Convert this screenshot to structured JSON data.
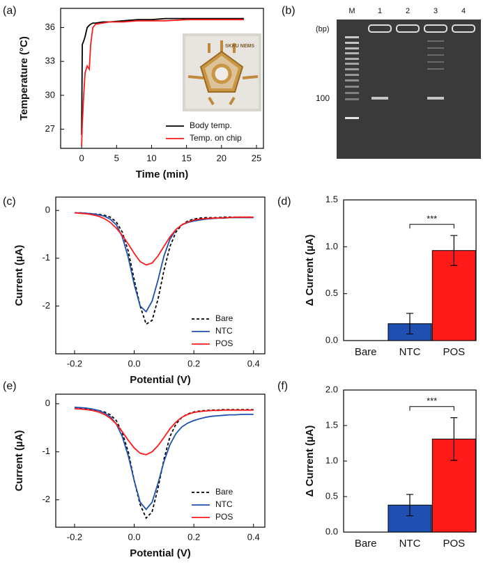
{
  "chart_data": [
    {
      "type": "line",
      "panel_label": "(a)",
      "x_label": "Time (min)",
      "y_label": "Temperature (°C)",
      "x": [
        0,
        0.1,
        0.3,
        0.5,
        0.8,
        1.1,
        1.3,
        1.6,
        2,
        3,
        4,
        6,
        8,
        10,
        12,
        15,
        18,
        21,
        23.2
      ],
      "series": [
        {
          "name": "Body temp.",
          "color": "#000000",
          "values": [
            26.5,
            34.5,
            34.8,
            35.2,
            36.0,
            36.2,
            36.3,
            36.4,
            36.4,
            36.5,
            36.5,
            36.6,
            36.7,
            36.7,
            36.8,
            36.8,
            36.8,
            36.8,
            36.8
          ]
        },
        {
          "name": "Temp. on chip",
          "color": "#ff1a1a",
          "values": [
            25.5,
            27.5,
            30,
            32,
            32.6,
            32.3,
            34.5,
            36,
            36.3,
            36.4,
            36.5,
            36.5,
            36.6,
            36.6,
            36.6,
            36.7,
            36.7,
            36.7,
            36.7
          ]
        }
      ],
      "xlim": [
        -3,
        26
      ],
      "ylim": [
        25.3,
        37.7
      ],
      "xticks": [
        0,
        5,
        10,
        15,
        20,
        25
      ],
      "yticks": [
        27,
        30,
        33,
        36
      ],
      "legend": "lower right",
      "inset_text": "SKKU NEMS"
    },
    {
      "type": "gel",
      "panel_label": "(b)",
      "lanes": [
        "M",
        "1",
        "2",
        "3",
        "4"
      ],
      "unit_label": "(bp)",
      "marker_label": "100"
    },
    {
      "type": "line",
      "panel_label": "(c)",
      "x_label": "Potential (V)",
      "y_label": "Current (µA)",
      "x": [
        -0.2,
        -0.18,
        -0.16,
        -0.14,
        -0.12,
        -0.1,
        -0.08,
        -0.06,
        -0.04,
        -0.02,
        0,
        0.02,
        0.04,
        0.06,
        0.08,
        0.1,
        0.12,
        0.14,
        0.16,
        0.18,
        0.2,
        0.22,
        0.24,
        0.26,
        0.28,
        0.3,
        0.32,
        0.34,
        0.36,
        0.38,
        0.4
      ],
      "series": [
        {
          "name": "Bare",
          "color": "#000000",
          "style": "dashed",
          "values": [
            -0.05,
            -0.05,
            -0.06,
            -0.07,
            -0.08,
            -0.1,
            -0.14,
            -0.24,
            -0.45,
            -0.85,
            -1.45,
            -2.0,
            -2.38,
            -2.3,
            -1.85,
            -1.25,
            -0.75,
            -0.45,
            -0.3,
            -0.22,
            -0.18,
            -0.16,
            -0.15,
            -0.15,
            -0.15,
            -0.14,
            -0.14,
            -0.14,
            -0.14,
            -0.14,
            -0.14
          ]
        },
        {
          "name": "NTC",
          "color": "#1f4fb0",
          "values": [
            -0.05,
            -0.05,
            -0.06,
            -0.07,
            -0.09,
            -0.12,
            -0.18,
            -0.3,
            -0.55,
            -0.98,
            -1.55,
            -2.0,
            -2.12,
            -1.9,
            -1.45,
            -0.95,
            -0.6,
            -0.4,
            -0.3,
            -0.25,
            -0.22,
            -0.2,
            -0.18,
            -0.17,
            -0.16,
            -0.16,
            -0.15,
            -0.15,
            -0.15,
            -0.15,
            -0.15
          ]
        },
        {
          "name": "POS",
          "color": "#ff1a1a",
          "values": [
            -0.05,
            -0.06,
            -0.07,
            -0.09,
            -0.12,
            -0.17,
            -0.25,
            -0.37,
            -0.52,
            -0.7,
            -0.9,
            -1.07,
            -1.14,
            -1.1,
            -0.95,
            -0.75,
            -0.55,
            -0.4,
            -0.3,
            -0.24,
            -0.2,
            -0.18,
            -0.17,
            -0.16,
            -0.16,
            -0.15,
            -0.15,
            -0.14,
            -0.14,
            -0.14,
            -0.14
          ]
        }
      ],
      "xlim": [
        -0.263,
        0.438
      ],
      "ylim": [
        -3.0,
        0.28
      ],
      "xticks": [
        -0.2,
        {
          "value": 0,
          "label": "0.0"
        },
        0.2,
        0.4
      ],
      "yticks": [
        0,
        -1,
        -2
      ],
      "legend": "lower right"
    },
    {
      "type": "bar",
      "panel_label": "(d)",
      "y_label": "Δ Current (µA)",
      "categories": [
        "Bare",
        "NTC",
        "POS"
      ],
      "values": [
        0,
        0.18,
        0.96
      ],
      "errors": [
        null,
        0.11,
        0.16
      ],
      "colors": [
        "#888888",
        "#1f4fb0",
        "#ff1a1a"
      ],
      "annotation": "***",
      "ylim": [
        0,
        1.5
      ],
      "yticks": [
        {
          "value": 0,
          "label": "0.0"
        },
        0.5,
        {
          "value": 1,
          "label": "1.0"
        },
        1.5
      ]
    },
    {
      "type": "line",
      "panel_label": "(e)",
      "x_label": "Potential (V)",
      "y_label": "Current (µA)",
      "x": [
        -0.2,
        -0.18,
        -0.16,
        -0.14,
        -0.12,
        -0.1,
        -0.08,
        -0.06,
        -0.04,
        -0.02,
        0,
        0.02,
        0.04,
        0.06,
        0.08,
        0.1,
        0.12,
        0.14,
        0.16,
        0.18,
        0.2,
        0.22,
        0.24,
        0.26,
        0.28,
        0.3,
        0.32,
        0.34,
        0.36,
        0.38,
        0.4
      ],
      "series": [
        {
          "name": "Bare",
          "color": "#000000",
          "style": "dashed",
          "values": [
            -0.1,
            -0.1,
            -0.11,
            -0.12,
            -0.14,
            -0.17,
            -0.23,
            -0.35,
            -0.6,
            -1.0,
            -1.6,
            -2.1,
            -2.38,
            -2.25,
            -1.75,
            -1.15,
            -0.68,
            -0.42,
            -0.28,
            -0.21,
            -0.17,
            -0.15,
            -0.14,
            -0.13,
            -0.13,
            -0.12,
            -0.12,
            -0.12,
            -0.12,
            -0.12,
            -0.12
          ]
        },
        {
          "name": "NTC",
          "color": "#1f4fb0",
          "values": [
            -0.07,
            -0.08,
            -0.09,
            -0.11,
            -0.14,
            -0.19,
            -0.27,
            -0.42,
            -0.68,
            -1.08,
            -1.6,
            -2.05,
            -2.2,
            -2.05,
            -1.65,
            -1.2,
            -0.85,
            -0.62,
            -0.48,
            -0.4,
            -0.35,
            -0.31,
            -0.28,
            -0.26,
            -0.25,
            -0.24,
            -0.23,
            -0.23,
            -0.22,
            -0.22,
            -0.22
          ]
        },
        {
          "name": "POS",
          "color": "#ff1a1a",
          "values": [
            -0.1,
            -0.11,
            -0.12,
            -0.14,
            -0.17,
            -0.22,
            -0.3,
            -0.42,
            -0.58,
            -0.76,
            -0.92,
            -1.03,
            -1.06,
            -1.0,
            -0.87,
            -0.7,
            -0.52,
            -0.38,
            -0.28,
            -0.22,
            -0.18,
            -0.16,
            -0.15,
            -0.14,
            -0.14,
            -0.13,
            -0.13,
            -0.13,
            -0.13,
            -0.13,
            -0.13
          ]
        }
      ],
      "xlim": [
        -0.263,
        0.438
      ],
      "ylim": [
        -2.57,
        0.2
      ],
      "xticks": [
        -0.2,
        {
          "value": 0,
          "label": "0.0"
        },
        0.2,
        0.4
      ],
      "yticks": [
        0,
        -1,
        -2
      ],
      "legend": "lower right"
    },
    {
      "type": "bar",
      "panel_label": "(f)",
      "y_label": "Δ Current (µA)",
      "categories": [
        "Bare",
        "NTC",
        "POS"
      ],
      "values": [
        0,
        0.38,
        1.31
      ],
      "errors": [
        null,
        0.15,
        0.3
      ],
      "colors": [
        "#888888",
        "#1f4fb0",
        "#ff1a1a"
      ],
      "annotation": "***",
      "ylim": [
        0,
        2.0
      ],
      "yticks": [
        {
          "value": 0,
          "label": "0.0"
        },
        0.5,
        {
          "value": 1,
          "label": "1.0"
        },
        1.5,
        {
          "value": 2,
          "label": "2.0"
        }
      ]
    }
  ]
}
